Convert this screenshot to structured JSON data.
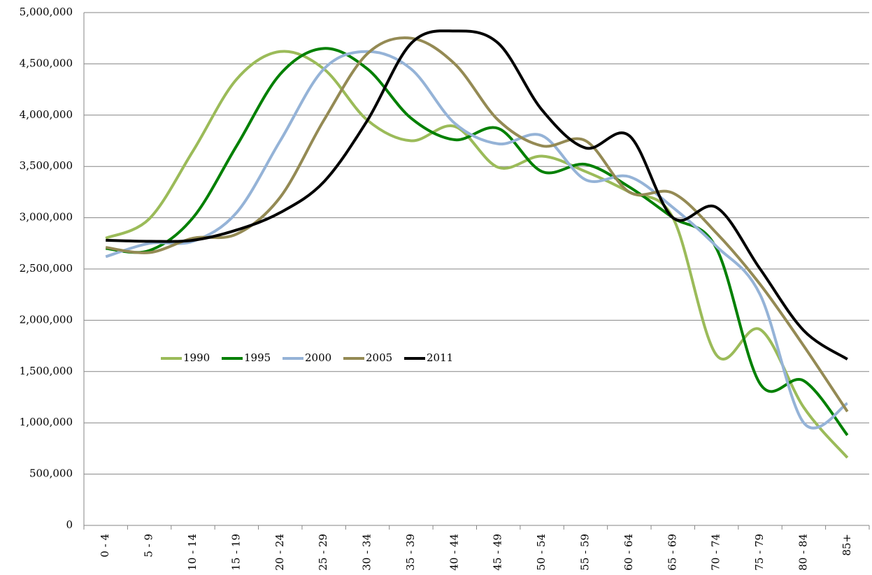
{
  "chart_data": {
    "type": "line",
    "smooth": true,
    "categories": [
      "0 - 4",
      "5 - 9",
      "10 - 14",
      "15 - 19",
      "20 - 24",
      "25 - 29",
      "30 - 34",
      "35 - 39",
      "40 - 44",
      "45 - 49",
      "50 - 54",
      "55 - 59",
      "60 - 64",
      "65 - 69",
      "70 - 74",
      "75 - 79",
      "80 - 84",
      "85+"
    ],
    "series": [
      {
        "name": "1990",
        "color": "#9bbb59",
        "values": [
          2800000,
          2990000,
          3650000,
          4350000,
          4620000,
          4450000,
          3950000,
          3750000,
          3890000,
          3490000,
          3600000,
          3450000,
          3250000,
          3000000,
          1660000,
          1910000,
          1150000,
          660000
        ]
      },
      {
        "name": "1995",
        "color": "#008000",
        "values": [
          2700000,
          2680000,
          3000000,
          3700000,
          4400000,
          4650000,
          4450000,
          3970000,
          3760000,
          3870000,
          3450000,
          3520000,
          3300000,
          3000000,
          2700000,
          1380000,
          1410000,
          880000
        ]
      },
      {
        "name": "2000",
        "color": "#95b3d7",
        "values": [
          2620000,
          2750000,
          2770000,
          3050000,
          3750000,
          4450000,
          4620000,
          4450000,
          3920000,
          3720000,
          3800000,
          3370000,
          3400000,
          3100000,
          2720000,
          2250000,
          1000000,
          1190000
        ]
      },
      {
        "name": "2005",
        "color": "#948a54",
        "values": [
          2710000,
          2660000,
          2800000,
          2840000,
          3200000,
          3950000,
          4600000,
          4750000,
          4500000,
          3950000,
          3700000,
          3750000,
          3250000,
          3240000,
          2850000,
          2350000,
          1750000,
          1110000
        ]
      },
      {
        "name": "2011",
        "color": "#000000",
        "values": [
          2780000,
          2770000,
          2780000,
          2880000,
          3050000,
          3350000,
          3950000,
          4700000,
          4820000,
          4700000,
          4050000,
          3680000,
          3800000,
          3000000,
          3100000,
          2500000,
          1900000,
          1620000
        ]
      }
    ],
    "ylim": [
      0,
      5000000
    ],
    "yticks": [
      0,
      {
        "value": 500000,
        "label": "500,000"
      },
      {
        "value": 1000000,
        "label": "1,000,000"
      },
      {
        "value": 1500000,
        "label": "1,500,000"
      },
      {
        "value": 2000000,
        "label": "2,000,000"
      },
      {
        "value": 2500000,
        "label": "2,500,000"
      },
      {
        "value": 3000000,
        "label": "3,000,000"
      },
      {
        "value": 3500000,
        "label": "3,500,000"
      },
      {
        "value": 4000000,
        "label": "4,000,000"
      },
      {
        "value": 4500000,
        "label": "4,500,000"
      },
      {
        "value": 5000000,
        "label": "5,000,000"
      }
    ],
    "grid": true,
    "legend_position": "left"
  }
}
